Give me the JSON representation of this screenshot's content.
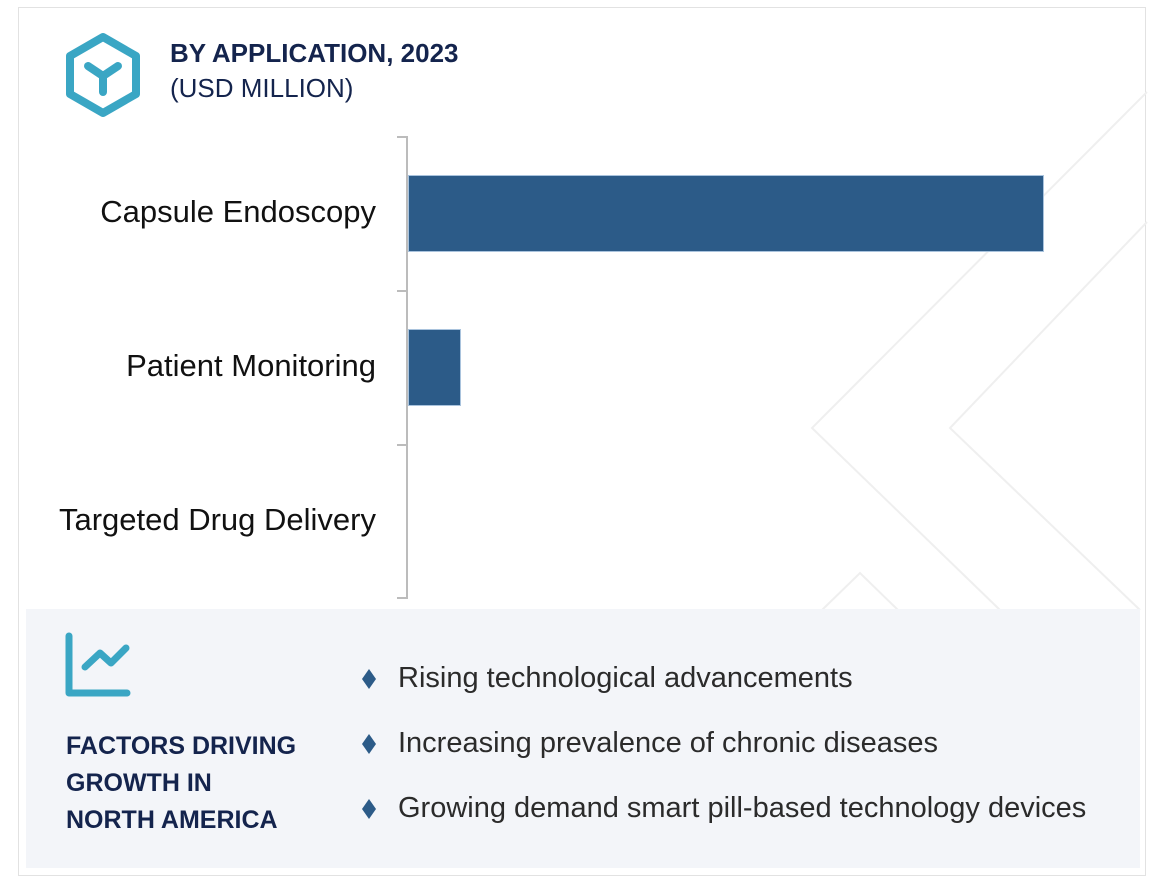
{
  "header": {
    "title": "BY APPLICATION, 2023",
    "subtitle": "(USD MILLION)",
    "icon": "hexagon-y-icon"
  },
  "chart_data": {
    "type": "bar",
    "orientation": "horizontal",
    "title": "BY APPLICATION, 2023",
    "subtitle": "(USD MILLION)",
    "xlabel": "",
    "ylabel": "",
    "categories": [
      "Capsule Endoscopy",
      "Patient Monitoring",
      "Targeted Drug Delivery"
    ],
    "values": [
      636,
      53,
      0
    ],
    "units": "relative bar length (no numeric axis shown)",
    "grid": false,
    "legend": null,
    "colors": {
      "bar": "#2c5b88",
      "axis": "#bcbcbc"
    }
  },
  "factors": {
    "icon": "trend-chart-icon",
    "title": "FACTORS DRIVING GROWTH IN NORTH AMERICA",
    "title_lines": [
      "FACTORS DRIVING",
      "GROWTH IN",
      "NORTH AMERICA"
    ],
    "items": [
      "Rising technological advancements",
      "Increasing prevalence of chronic diseases",
      "Growing demand smart pill-based technology devices"
    ]
  },
  "colors": {
    "title": "#14244d",
    "icon_accent": "#3aa6c4",
    "bar": "#2c5b88",
    "panel_bg": "#f3f5f9",
    "bullet": "#2c5b88"
  }
}
